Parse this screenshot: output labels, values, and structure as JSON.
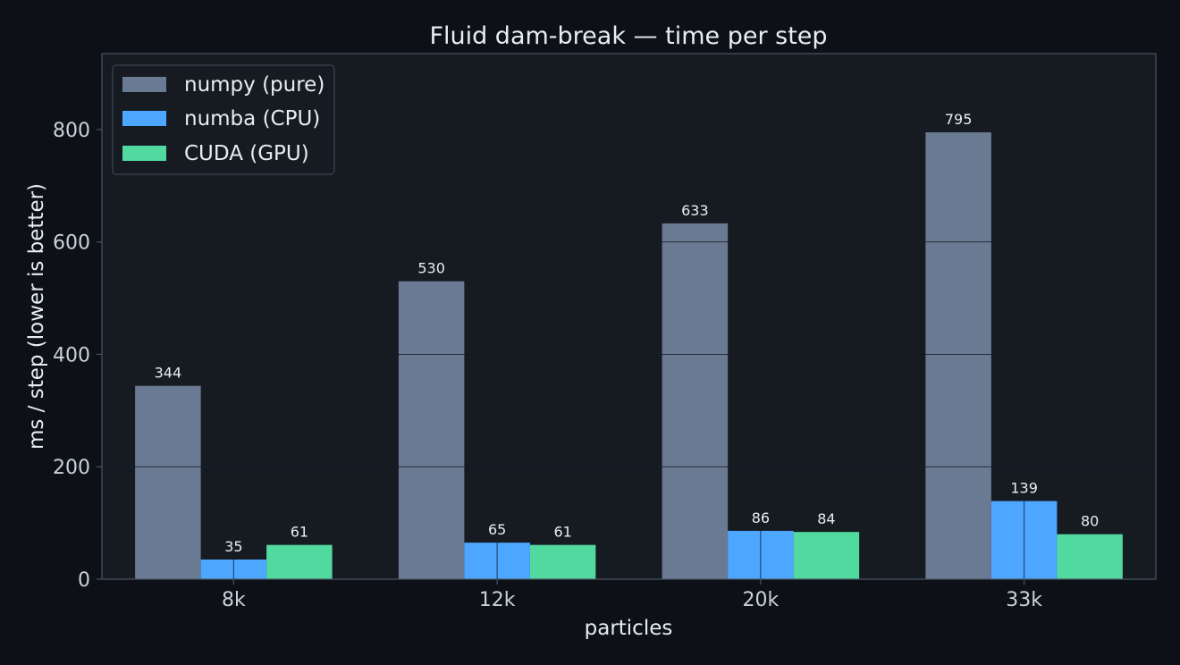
{
  "colors": {
    "page_background": "#0d1117",
    "plot_background": "#161b22",
    "grid": "#2a3240",
    "spine": "#4a5563",
    "text": "#e6edf3",
    "tick_text": "#c9d1d9"
  },
  "chart_data": {
    "type": "bar",
    "title": "Fluid dam-break  —  time per step",
    "xlabel": "particles",
    "ylabel": "ms / step  (lower is better)",
    "categories": [
      "8k",
      "12k",
      "20k",
      "33k"
    ],
    "ylim": [
      0,
      935
    ],
    "yticks": [
      0,
      200,
      400,
      600,
      800
    ],
    "grid": true,
    "legend_position": "top-left",
    "series": [
      {
        "name": "numpy (pure)",
        "color": "#6b7a93",
        "values": [
          344,
          530,
          633,
          795
        ]
      },
      {
        "name": "numba (CPU)",
        "color": "#4da6ff",
        "values": [
          35,
          65,
          86,
          139
        ]
      },
      {
        "name": "CUDA (GPU)",
        "color": "#52d9a0",
        "values": [
          61,
          61,
          84,
          80
        ]
      }
    ]
  }
}
